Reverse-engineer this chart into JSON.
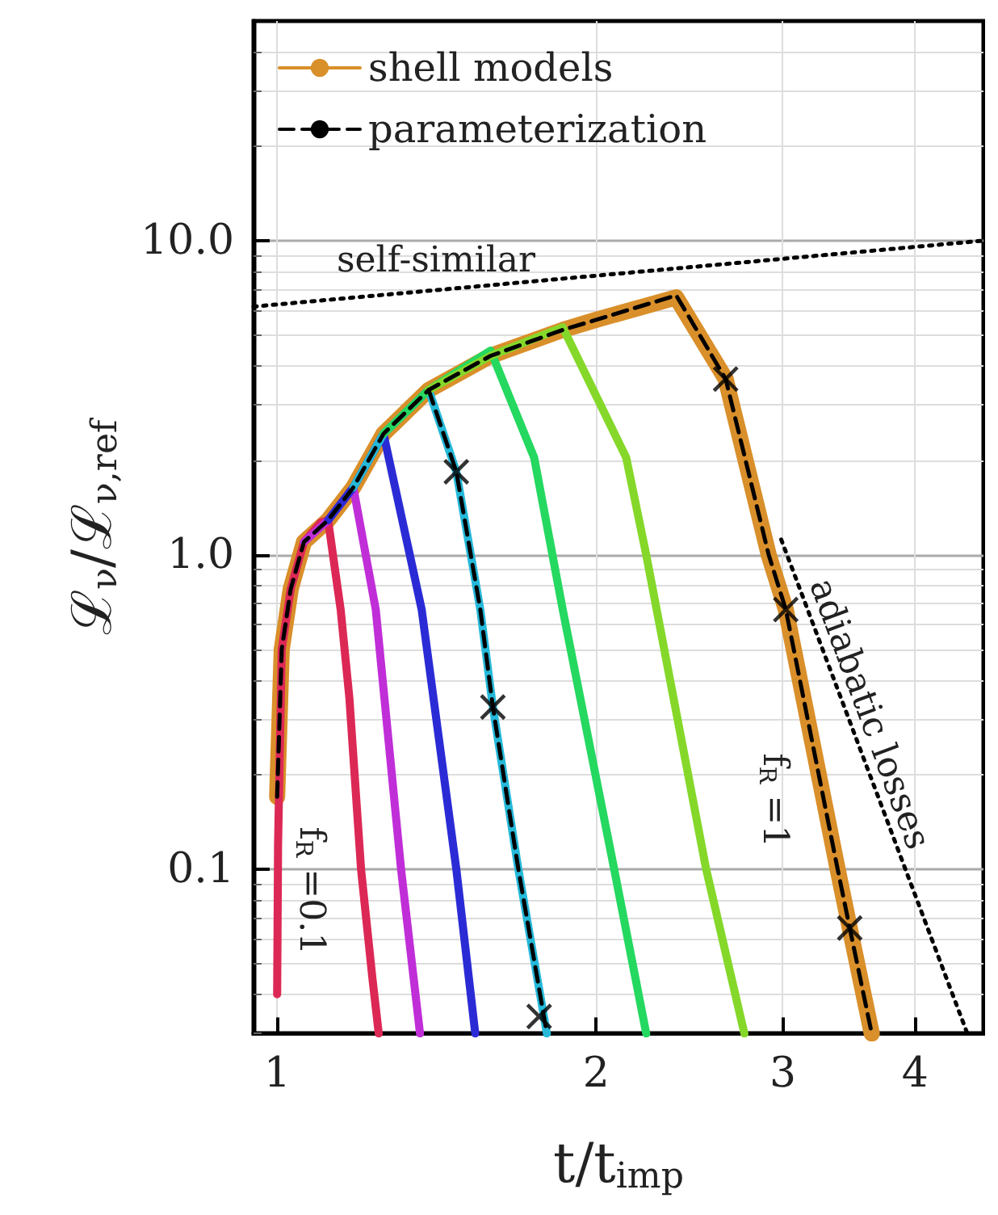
{
  "chart_data": {
    "type": "line",
    "xlabel": "t/t$_{imp}$",
    "ylabel": "ℒ$_{ν}$/ℒ$_{ν,ref}$",
    "log": "xy",
    "xlim": [
      0.95,
      4.64
    ],
    "xticks": [
      1,
      2,
      3,
      4
    ],
    "ylim": [
      0.03,
      50
    ],
    "yticks": [
      0.1,
      {
        "value": 1,
        "label": "1.0"
      },
      {
        "value": 10,
        "label": "10.0"
      }
    ],
    "grid": true,
    "legend": "top left",
    "marker": "none",
    "series": [
      {
        "name": "shell models",
        "color": "#d98f2a",
        "x": [
          1.0,
          1.01,
          1.03,
          1.06,
          1.117,
          1.18,
          1.26,
          1.39,
          1.59,
          1.86,
          2.0,
          2.38,
          2.65,
          2.91,
          3.02,
          3.38,
          3.47,
          3.64
        ],
        "values": [
          0.17,
          0.5,
          0.78,
          1.1,
          1.29,
          1.64,
          2.43,
          3.35,
          4.3,
          5.2,
          5.6,
          6.6,
          3.63,
          1.0,
          0.67,
          0.1,
          0.065,
          0.03
        ]
      },
      {
        "color": "#dc2855",
        "x": [
          1.0,
          1.002,
          1.01,
          1.03,
          1.06,
          1.1,
          1.117,
          1.148,
          1.17,
          1.2,
          1.23,
          1.247
        ],
        "values": [
          0.04,
          0.12,
          0.5,
          0.78,
          1.1,
          1.27,
          1.29,
          0.67,
          0.35,
          0.1,
          0.045,
          0.03
        ]
      },
      {
        "color": "#c02ed8",
        "x": [
          1.06,
          1.117,
          1.18,
          1.239,
          1.309,
          1.364
        ],
        "values": [
          1.1,
          1.29,
          1.64,
          0.67,
          0.1,
          0.03
        ]
      },
      {
        "color": "#2b2bd6",
        "x": [
          1.117,
          1.18,
          1.26,
          1.369,
          1.476,
          1.538
        ],
        "values": [
          1.29,
          1.64,
          2.43,
          0.67,
          0.1,
          0.03
        ]
      },
      {
        "color": "#25b8d8",
        "x": [
          1.18,
          1.26,
          1.39,
          1.476,
          1.555,
          1.598,
          1.689,
          1.797
        ],
        "values": [
          1.64,
          2.43,
          3.35,
          1.84,
          0.67,
          0.328,
          0.1,
          0.03
        ]
      },
      {
        "color": "#25d860",
        "x": [
          1.26,
          1.39,
          1.59,
          1.748,
          1.86,
          2.08,
          2.23
        ],
        "values": [
          2.43,
          3.35,
          4.47,
          2.04,
          0.67,
          0.1,
          0.03
        ]
      },
      {
        "color": "#85d82a",
        "x": [
          1.39,
          1.59,
          1.86,
          2.135,
          2.23,
          2.54,
          2.76
        ],
        "values": [
          3.35,
          4.3,
          5.3,
          2.04,
          1.0,
          0.1,
          0.03
        ]
      },
      {
        "name": "parameterization",
        "color": "#000000",
        "line_style": "dashed",
        "x": [
          1.0,
          1.01,
          1.03,
          1.06,
          1.117,
          1.18,
          1.26,
          1.39,
          1.59,
          1.86,
          2.0,
          2.38,
          2.65,
          2.91,
          3.02,
          3.38,
          3.47,
          3.64
        ],
        "values": [
          0.17,
          0.5,
          0.78,
          1.1,
          1.29,
          1.64,
          2.43,
          3.35,
          4.3,
          5.2,
          5.6,
          6.7,
          3.63,
          1.0,
          0.67,
          0.1,
          0.065,
          0.03
        ]
      },
      {
        "color": "#000000",
        "line_style": "dashed",
        "x": [
          1.39,
          1.476,
          1.555,
          1.598,
          1.689,
          1.797
        ],
        "values": [
          3.35,
          1.84,
          0.67,
          0.328,
          0.1,
          0.03
        ]
      },
      {
        "type": "scatter",
        "color": "#000000",
        "marker": "cross",
        "x": [
          1.476,
          1.598,
          1.767,
          2.65,
          3.02,
          3.47
        ],
        "values": [
          1.84,
          0.328,
          0.034,
          3.63,
          0.67,
          0.065
        ]
      },
      {
        "color": "#000000",
        "line_style": "dotted",
        "x": [
          0.95,
          4.64
        ],
        "values": [
          6.17,
          10.0
        ]
      },
      {
        "color": "#000000",
        "line_style": "dotted",
        "x": [
          2.99,
          4.48
        ],
        "values": [
          1.12,
          0.03
        ]
      }
    ],
    "annotations": [
      "self-similar",
      "adiabatic losses",
      "f$_{R}$ =0.1",
      "f$_{R}$ =1"
    ]
  }
}
